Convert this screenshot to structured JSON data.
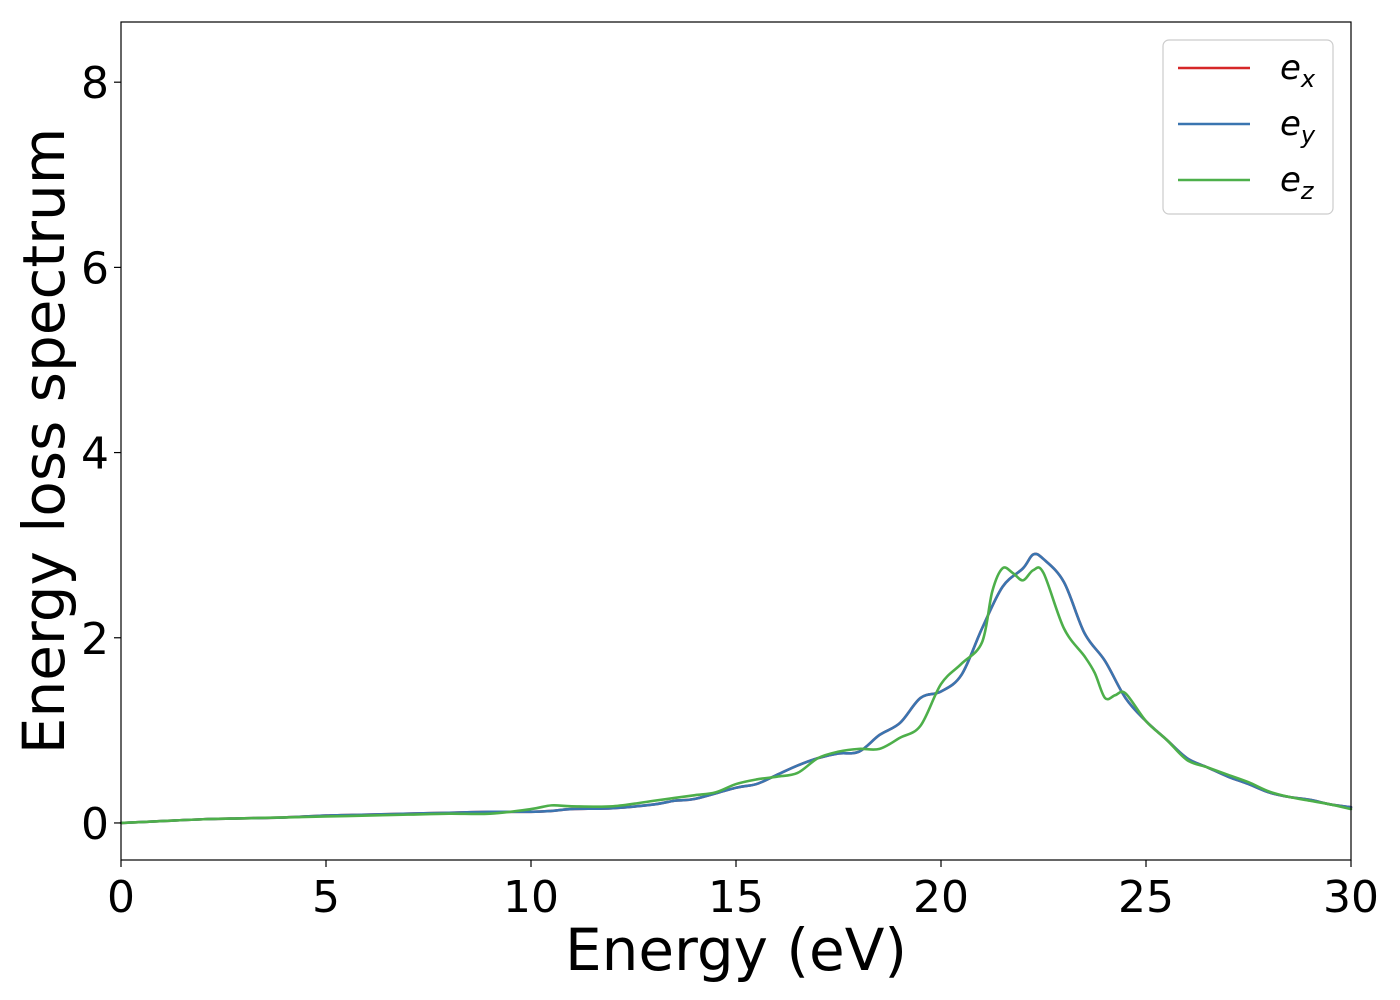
{
  "chart_data": {
    "type": "line",
    "xlabel": "Energy (eV)",
    "ylabel": "Energy loss spectrum",
    "xlim": [
      0,
      30
    ],
    "ylim": [
      -0.4,
      8.65
    ],
    "xticks": [
      0,
      5,
      10,
      15,
      20,
      25,
      30
    ],
    "yticks": [
      0,
      2,
      4,
      6,
      8
    ],
    "xtick_labels": [
      "0",
      "5",
      "10",
      "15",
      "20",
      "25",
      "30"
    ],
    "ytick_labels": [
      "0",
      "2",
      "4",
      "6",
      "8"
    ],
    "grid": false,
    "legend_position": "top-right",
    "series": [
      {
        "name": "e_x",
        "legend_main": "e",
        "legend_sub": "x",
        "color": "#d62728",
        "x": [
          0,
          1,
          2,
          3,
          4,
          5,
          6,
          7,
          8,
          9,
          10,
          10.5,
          11,
          12,
          13,
          13.5,
          14,
          15,
          15.5,
          16,
          16.5,
          17,
          17.5,
          18,
          18.5,
          19,
          19.5,
          20,
          20.5,
          21,
          21.5,
          22,
          22.25,
          22.5,
          23,
          23.5,
          24,
          24.5,
          25,
          25.5,
          26,
          26.5,
          27,
          27.5,
          28,
          28.5,
          29,
          29.5,
          30
        ],
        "y": [
          0,
          0.02,
          0.04,
          0.05,
          0.06,
          0.08,
          0.09,
          0.1,
          0.11,
          0.12,
          0.12,
          0.13,
          0.15,
          0.16,
          0.2,
          0.24,
          0.26,
          0.38,
          0.42,
          0.52,
          0.62,
          0.7,
          0.75,
          0.77,
          0.95,
          1.08,
          1.35,
          1.42,
          1.6,
          2.1,
          2.55,
          2.75,
          2.9,
          2.85,
          2.6,
          2.05,
          1.75,
          1.35,
          1.1,
          0.9,
          0.7,
          0.6,
          0.5,
          0.42,
          0.33,
          0.28,
          0.25,
          0.2,
          0.17
        ]
      },
      {
        "name": "e_y",
        "legend_main": "e",
        "legend_sub": "y",
        "color": "#3a75b0",
        "x": [
          0,
          1,
          2,
          3,
          4,
          5,
          6,
          7,
          8,
          9,
          10,
          10.5,
          11,
          12,
          13,
          13.5,
          14,
          15,
          15.5,
          16,
          16.5,
          17,
          17.5,
          18,
          18.5,
          19,
          19.5,
          20,
          20.5,
          21,
          21.5,
          22,
          22.25,
          22.5,
          23,
          23.5,
          24,
          24.5,
          25,
          25.5,
          26,
          26.5,
          27,
          27.5,
          28,
          28.5,
          29,
          29.5,
          30
        ],
        "y": [
          0,
          0.02,
          0.04,
          0.05,
          0.06,
          0.08,
          0.09,
          0.1,
          0.11,
          0.12,
          0.12,
          0.13,
          0.15,
          0.16,
          0.2,
          0.24,
          0.26,
          0.38,
          0.42,
          0.52,
          0.62,
          0.7,
          0.75,
          0.77,
          0.95,
          1.08,
          1.35,
          1.42,
          1.6,
          2.1,
          2.55,
          2.75,
          2.9,
          2.85,
          2.6,
          2.05,
          1.75,
          1.35,
          1.1,
          0.9,
          0.7,
          0.6,
          0.5,
          0.42,
          0.33,
          0.28,
          0.25,
          0.2,
          0.17
        ]
      },
      {
        "name": "e_z",
        "legend_main": "e",
        "legend_sub": "z",
        "color": "#4daf4a",
        "x": [
          0,
          1,
          2,
          3,
          4,
          5,
          6,
          7,
          8,
          9,
          10,
          10.5,
          11,
          12,
          13,
          13.5,
          14,
          14.5,
          15,
          15.5,
          16,
          16.5,
          17,
          17.5,
          18,
          18.5,
          19,
          19.5,
          20,
          20.5,
          21,
          21.25,
          21.5,
          21.75,
          22,
          22.25,
          22.5,
          23,
          23.5,
          23.75,
          24,
          24.25,
          24.5,
          25,
          25.5,
          26,
          26.5,
          27,
          27.5,
          28,
          28.5,
          29,
          29.5,
          30
        ],
        "y": [
          0,
          0.02,
          0.04,
          0.05,
          0.06,
          0.07,
          0.08,
          0.09,
          0.1,
          0.1,
          0.15,
          0.19,
          0.18,
          0.18,
          0.24,
          0.27,
          0.3,
          0.33,
          0.42,
          0.47,
          0.5,
          0.54,
          0.7,
          0.77,
          0.8,
          0.8,
          0.92,
          1.05,
          1.5,
          1.72,
          1.95,
          2.5,
          2.75,
          2.7,
          2.62,
          2.73,
          2.7,
          2.1,
          1.8,
          1.62,
          1.35,
          1.38,
          1.4,
          1.1,
          0.9,
          0.68,
          0.6,
          0.52,
          0.44,
          0.34,
          0.28,
          0.24,
          0.2,
          0.15
        ]
      }
    ]
  }
}
